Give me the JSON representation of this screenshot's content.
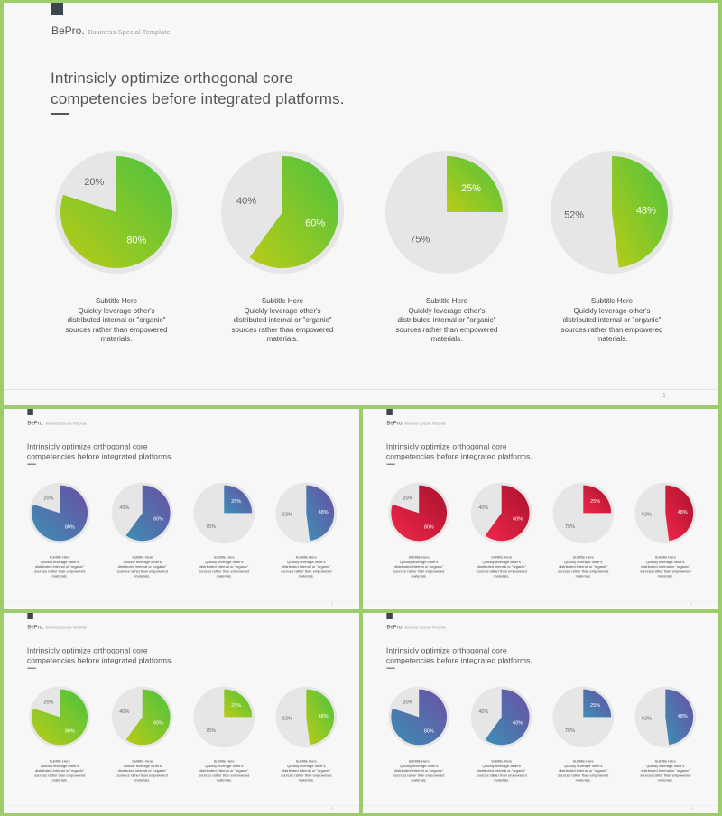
{
  "brand": {
    "name": "BePro.",
    "tagline": "Business  Special  Template"
  },
  "headline_line1": "Intrinsicly optimize orthogonal core",
  "headline_line2": "competencies before integrated platforms.",
  "text_block": {
    "subtitle": "Subtitle Here",
    "line1": "Quickly leverage other's",
    "line2": "distributed internal or \"organic\"",
    "line3": "sources rather than empowered",
    "line4": "materials."
  },
  "page_number": "1",
  "colors": {
    "background": "#9ccc6b",
    "slide": "#f7f7f7",
    "pie_background": "#e6e6e6",
    "themes": [
      {
        "from": "#b9cc17",
        "to": "#4cc23f"
      },
      {
        "from": "#3c8fb5",
        "to": "#6a4fa3"
      },
      {
        "from": "#f2264a",
        "to": "#a8122e"
      },
      {
        "from": "#b9cc17",
        "to": "#4cc23f"
      },
      {
        "from": "#3c8fb5",
        "to": "#6a4fa3"
      }
    ]
  },
  "chart_data": {
    "type": "pie",
    "charts": [
      {
        "highlight_label": "80%",
        "rest_label": "20%",
        "highlight_value": 80,
        "rest_value": 20
      },
      {
        "highlight_label": "60%",
        "rest_label": "40%",
        "highlight_value": 60,
        "rest_value": 40
      },
      {
        "highlight_label": "25%",
        "rest_label": "75%",
        "highlight_value": 25,
        "rest_value": 75
      },
      {
        "highlight_label": "48%",
        "rest_label": "52%",
        "highlight_value": 48,
        "rest_value": 52
      }
    ]
  }
}
